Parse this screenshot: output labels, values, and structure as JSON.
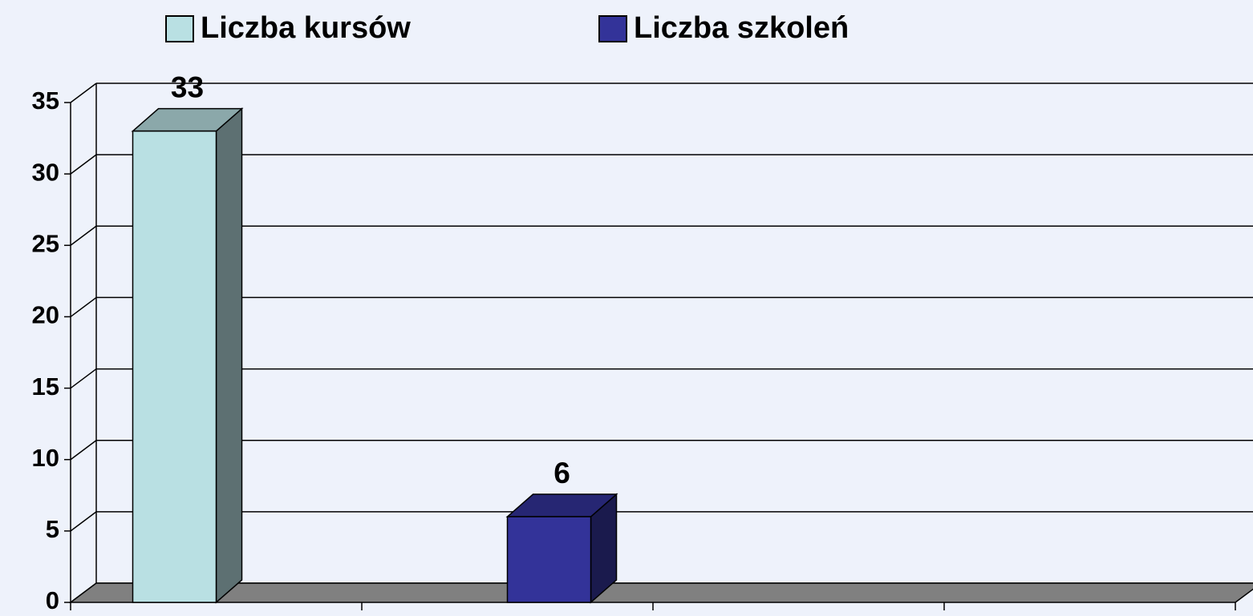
{
  "chart_data": {
    "type": "bar3d",
    "categories": [
      null,
      null,
      null,
      null
    ],
    "series": [
      {
        "name": "Liczba kursów",
        "color": "#b9e0e3",
        "values": [
          33,
          null,
          null,
          null
        ]
      },
      {
        "name": "Liczba szkoleń",
        "color": "#333399",
        "values": [
          null,
          6,
          null,
          null
        ]
      }
    ],
    "ylim": [
      0,
      35
    ],
    "yticks": [
      0,
      5,
      10,
      15,
      20,
      25,
      30,
      35
    ],
    "grid": true,
    "legend": "top"
  }
}
